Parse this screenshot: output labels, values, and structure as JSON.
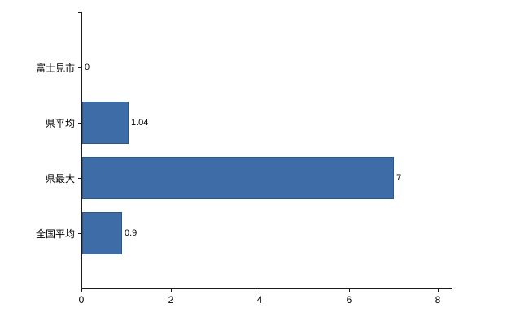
{
  "chart_data": {
    "type": "bar",
    "orientation": "horizontal",
    "title": "",
    "xlabel": "",
    "ylabel": "",
    "categories": [
      "富士見市",
      "県平均",
      "県最大",
      "全国平均"
    ],
    "values": [
      0,
      1.04,
      7,
      0.9
    ],
    "value_labels": [
      "0",
      "1.04",
      "7",
      "0.9"
    ],
    "xlim": [
      0,
      8
    ],
    "x_ticks": [
      0,
      2,
      4,
      6,
      8
    ],
    "grid": "off",
    "legend": "none",
    "colors": {
      "bar_fill": "#3d6ca6",
      "bar_border": "#2b568c",
      "axis": "#1a1a1a",
      "text": "#000000",
      "background": "#ffffff"
    }
  }
}
